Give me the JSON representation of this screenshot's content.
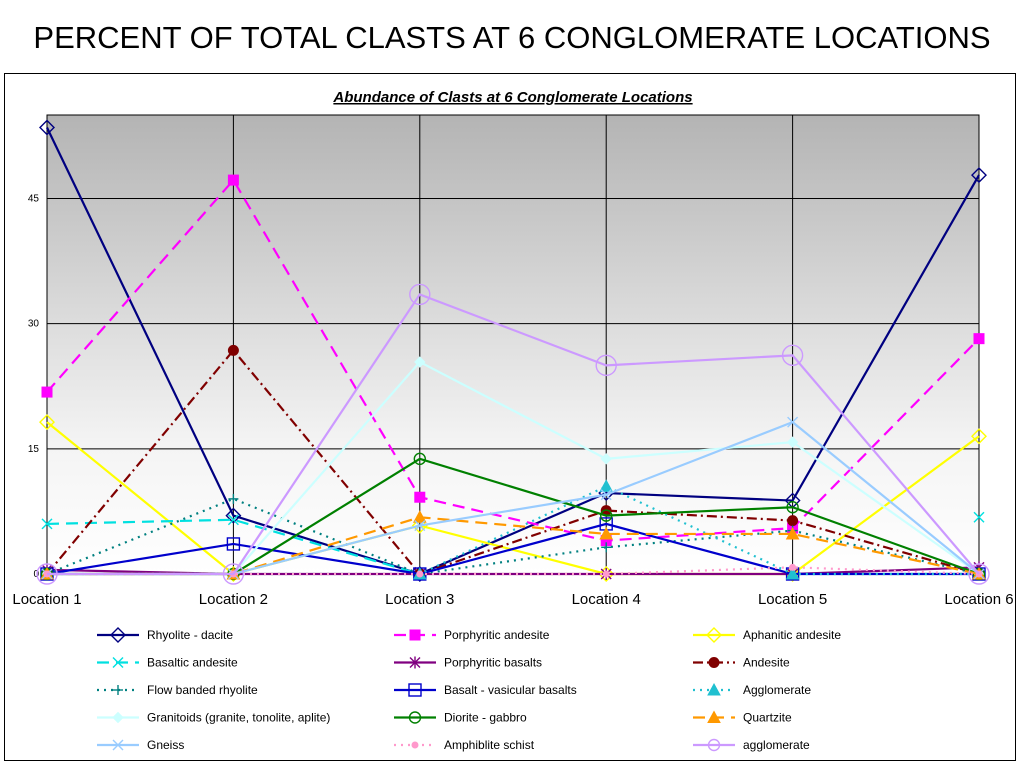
{
  "slide": {
    "title": "PERCENT OF TOTAL CLASTS AT 6 CONGLOMERATE LOCATIONS"
  },
  "chart_data": {
    "type": "line",
    "title": "Abundance of Clasts at 6 Conglomerate Locations",
    "xlabel": "",
    "ylabel": "",
    "categories": [
      "Location 1",
      "Location 2",
      "Location 3",
      "Location 4",
      "Location 5",
      "Location 6"
    ],
    "ylim": [
      0,
      55
    ],
    "yticks": [
      0,
      15,
      30,
      45
    ],
    "grid": true,
    "background": "gradient gray (top) to white (bottom)",
    "legend_position": "bottom",
    "series": [
      {
        "name": "Rhyolite - dacite",
        "color": "#000080",
        "dash": "solid",
        "marker": "diamond-open",
        "values": [
          53.5,
          7,
          0,
          9.7,
          8.8,
          47.8
        ]
      },
      {
        "name": "Porphyritic andesite",
        "color": "#FF00FF",
        "dash": "dash",
        "marker": "square-filled",
        "values": [
          21.8,
          47.2,
          9.2,
          4,
          5.5,
          28.2
        ]
      },
      {
        "name": "Aphanitic andesite",
        "color": "#FFFF00",
        "dash": "solid",
        "marker": "diamond-open",
        "values": [
          18.2,
          0,
          5.8,
          0,
          0,
          16.5
        ]
      },
      {
        "name": "Basaltic andesite",
        "color": "#00E0E0",
        "dash": "dash",
        "marker": "x",
        "values": [
          6,
          6.5,
          0,
          null,
          null,
          6.8
        ]
      },
      {
        "name": "Porphyritic basalts",
        "color": "#800080",
        "dash": "solid",
        "marker": "star",
        "values": [
          0.5,
          0,
          0,
          0,
          0,
          0.8
        ]
      },
      {
        "name": "Andesite",
        "color": "#800000",
        "dash": "dashdot",
        "marker": "circle-filled",
        "values": [
          0,
          26.8,
          0,
          7.6,
          6.4,
          0
        ]
      },
      {
        "name": "Flow banded rhyolite",
        "color": "#008080",
        "dash": "dot",
        "marker": "plus",
        "values": [
          0,
          9,
          0,
          3.2,
          5.2,
          0
        ]
      },
      {
        "name": "Basalt - vasicular basalts",
        "color": "#0000CC",
        "dash": "solid",
        "marker": "square-open",
        "values": [
          0,
          3.6,
          0,
          6,
          0,
          0
        ]
      },
      {
        "name": "Agglomerate",
        "color": "#20C0D0",
        "dash": "dot",
        "marker": "triangle-filled",
        "values": [
          0,
          0,
          0,
          10.5,
          0,
          0
        ]
      },
      {
        "name": "Granitoids (granite, tonolite, aplite)",
        "color": "#CCFFFF",
        "dash": "solid",
        "marker": "diamond-filled",
        "values": [
          0,
          0,
          25.4,
          13.8,
          15.8,
          0
        ]
      },
      {
        "name": "Diorite - gabbro",
        "color": "#008000",
        "dash": "solid",
        "marker": "circle-open",
        "values": [
          0,
          0,
          13.8,
          7,
          8,
          0
        ]
      },
      {
        "name": "Quartzite",
        "color": "#FF9900",
        "dash": "dash",
        "marker": "triangle-filled",
        "values": [
          0,
          0,
          6.8,
          4.8,
          4.8,
          0
        ]
      },
      {
        "name": "Gneiss",
        "color": "#99CCFF",
        "dash": "solid",
        "marker": "x",
        "values": [
          0,
          0,
          5.8,
          9.5,
          18.2,
          0
        ]
      },
      {
        "name": "Amphiblite schist",
        "color": "#FF99CC",
        "dash": "dot",
        "marker": "circle-filled-small",
        "values": [
          0,
          0,
          0,
          0,
          0.8,
          0
        ]
      },
      {
        "name": "agglomerate",
        "color": "#CC99FF",
        "dash": "solid",
        "marker": "circle-open-large",
        "values": [
          0,
          0,
          33.5,
          25,
          26.2,
          0
        ]
      }
    ],
    "ytick_labels": [
      "0",
      "15",
      "30",
      "45"
    ]
  }
}
